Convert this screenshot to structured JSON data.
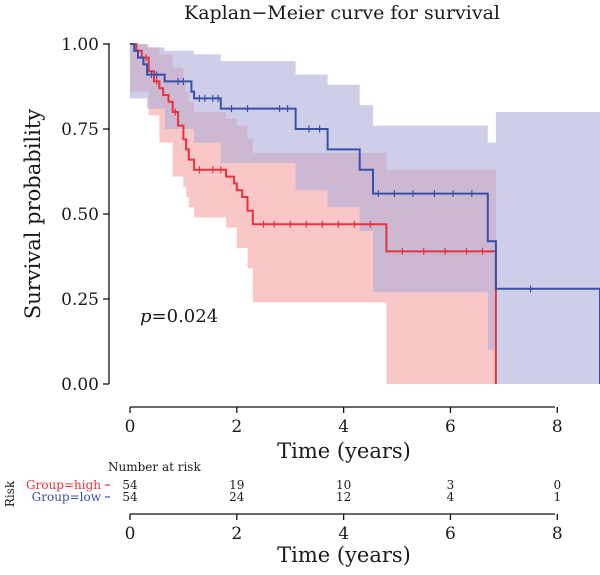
{
  "chart_data": {
    "type": "line",
    "title": "Kaplan−Meier curve for survival",
    "xlabel": "Time (years)",
    "ylabel": "Survival probability",
    "xlim": [
      0,
      8.8
    ],
    "ylim": [
      0,
      1
    ],
    "x_ticks": [
      "0",
      "2",
      "4",
      "6",
      "8"
    ],
    "y_ticks": [
      "0.00",
      "0.25",
      "0.50",
      "0.75",
      "1.00"
    ],
    "grid": false,
    "pvalue_prefix": "p",
    "pvalue_rest": "=0.024",
    "series": [
      {
        "name": "Group=high",
        "color": "#e8323c",
        "band_color": "#f7a1a4",
        "steps": [
          [
            0,
            1.0
          ],
          [
            0.12,
            0.98
          ],
          [
            0.22,
            0.96
          ],
          [
            0.35,
            0.92
          ],
          [
            0.45,
            0.89
          ],
          [
            0.55,
            0.87
          ],
          [
            0.62,
            0.85
          ],
          [
            0.72,
            0.83
          ],
          [
            0.8,
            0.8
          ],
          [
            0.9,
            0.76
          ],
          [
            1.0,
            0.72
          ],
          [
            1.05,
            0.69
          ],
          [
            1.1,
            0.66
          ],
          [
            1.2,
            0.63
          ],
          [
            1.8,
            0.61
          ],
          [
            1.95,
            0.59
          ],
          [
            2.0,
            0.57
          ],
          [
            2.1,
            0.55
          ],
          [
            2.2,
            0.51
          ],
          [
            2.3,
            0.47
          ],
          [
            4.8,
            0.39
          ],
          [
            6.85,
            0.0
          ]
        ],
        "upper": [
          [
            0,
            1.0
          ],
          [
            0.35,
            0.99
          ],
          [
            0.55,
            0.97
          ],
          [
            0.8,
            0.93
          ],
          [
            1.0,
            0.89
          ],
          [
            1.05,
            0.86
          ],
          [
            1.1,
            0.83
          ],
          [
            1.2,
            0.8
          ],
          [
            1.8,
            0.78
          ],
          [
            2.0,
            0.76
          ],
          [
            2.2,
            0.72
          ],
          [
            2.3,
            0.68
          ],
          [
            4.8,
            0.63
          ],
          [
            6.85,
            0.0
          ]
        ],
        "lower": [
          [
            0,
            1.0
          ],
          [
            0.35,
            0.86
          ],
          [
            0.55,
            0.79
          ],
          [
            0.8,
            0.71
          ],
          [
            1.0,
            0.61
          ],
          [
            1.05,
            0.58
          ],
          [
            1.1,
            0.55
          ],
          [
            1.2,
            0.52
          ],
          [
            1.8,
            0.49
          ],
          [
            2.0,
            0.46
          ],
          [
            2.2,
            0.4
          ],
          [
            2.3,
            0.34
          ],
          [
            4.8,
            0.24
          ],
          [
            6.85,
            0.0
          ]
        ],
        "censor_x": [
          0.3,
          0.5,
          0.85,
          1.3,
          1.55,
          1.7,
          2.5,
          2.7,
          3.0,
          3.3,
          3.6,
          3.9,
          4.2,
          4.5,
          5.1,
          5.5,
          5.9,
          6.3,
          6.6
        ]
      },
      {
        "name": "Group=low",
        "color": "#3850a8",
        "band_color": "#aeaddb",
        "steps": [
          [
            0,
            1.0
          ],
          [
            0.08,
            0.98
          ],
          [
            0.15,
            0.96
          ],
          [
            0.25,
            0.94
          ],
          [
            0.32,
            0.91
          ],
          [
            0.65,
            0.89
          ],
          [
            1.15,
            0.86
          ],
          [
            1.2,
            0.84
          ],
          [
            1.7,
            0.81
          ],
          [
            3.1,
            0.75
          ],
          [
            3.7,
            0.69
          ],
          [
            4.3,
            0.63
          ],
          [
            4.55,
            0.56
          ],
          [
            6.7,
            0.42
          ],
          [
            6.85,
            0.28
          ],
          [
            8.8,
            0.0
          ]
        ],
        "upper": [
          [
            0,
            1.0
          ],
          [
            0.32,
            0.99
          ],
          [
            0.65,
            0.98
          ],
          [
            1.2,
            0.97
          ],
          [
            1.7,
            0.95
          ],
          [
            3.1,
            0.91
          ],
          [
            3.7,
            0.88
          ],
          [
            4.3,
            0.82
          ],
          [
            4.55,
            0.76
          ],
          [
            6.7,
            0.71
          ],
          [
            6.85,
            0.8
          ],
          [
            8.8,
            0.0
          ]
        ],
        "lower": [
          [
            0,
            1.0
          ],
          [
            0.32,
            0.84
          ],
          [
            0.65,
            0.81
          ],
          [
            1.2,
            0.75
          ],
          [
            1.7,
            0.71
          ],
          [
            3.1,
            0.65
          ],
          [
            3.7,
            0.57
          ],
          [
            4.3,
            0.52
          ],
          [
            4.55,
            0.45
          ],
          [
            6.7,
            0.27
          ],
          [
            6.85,
            0.1
          ],
          [
            8.8,
            0.0
          ]
        ],
        "censor_x": [
          0.4,
          0.5,
          0.9,
          1.0,
          1.3,
          1.4,
          1.55,
          1.65,
          1.9,
          2.2,
          2.8,
          2.95,
          3.35,
          3.55,
          4.65,
          4.95,
          5.3,
          5.7,
          6.05,
          6.4,
          7.5
        ]
      }
    ],
    "risk_table": {
      "title": "Number at risk",
      "row_label": "Risk",
      "times": [
        0,
        2,
        4,
        6,
        8
      ],
      "rows": [
        {
          "name": "Group=high",
          "color": "#e8323c",
          "counts": [
            54,
            19,
            10,
            3,
            0
          ]
        },
        {
          "name": "Group=low",
          "color": "#3850a8",
          "counts": [
            54,
            24,
            12,
            4,
            1
          ]
        }
      ],
      "xlabel": "Time (years)",
      "x_ticks": [
        "0",
        "2",
        "4",
        "6",
        "8"
      ]
    }
  }
}
